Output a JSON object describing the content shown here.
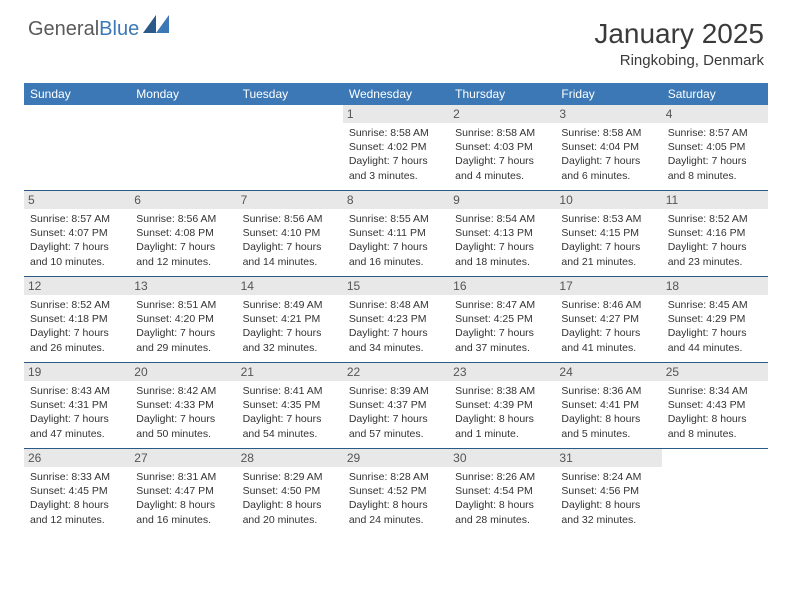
{
  "logo": {
    "text1": "General",
    "text2": "Blue"
  },
  "title": "January 2025",
  "location": "Ringkobing, Denmark",
  "colors": {
    "header_bg": "#3b78b5",
    "header_fg": "#ffffff",
    "daynum_bg": "#e8e8e8",
    "daynum_fg": "#555555",
    "week_divider": "#2b5a8a",
    "text": "#333333",
    "page_bg": "#ffffff",
    "logo_gray": "#5a5a5a",
    "logo_blue": "#3b78b5"
  },
  "day_names": [
    "Sunday",
    "Monday",
    "Tuesday",
    "Wednesday",
    "Thursday",
    "Friday",
    "Saturday"
  ],
  "weeks": [
    [
      null,
      null,
      null,
      {
        "n": "1",
        "sr": "8:58 AM",
        "ss": "4:02 PM",
        "dl": "7 hours and 3 minutes."
      },
      {
        "n": "2",
        "sr": "8:58 AM",
        "ss": "4:03 PM",
        "dl": "7 hours and 4 minutes."
      },
      {
        "n": "3",
        "sr": "8:58 AM",
        "ss": "4:04 PM",
        "dl": "7 hours and 6 minutes."
      },
      {
        "n": "4",
        "sr": "8:57 AM",
        "ss": "4:05 PM",
        "dl": "7 hours and 8 minutes."
      }
    ],
    [
      {
        "n": "5",
        "sr": "8:57 AM",
        "ss": "4:07 PM",
        "dl": "7 hours and 10 minutes."
      },
      {
        "n": "6",
        "sr": "8:56 AM",
        "ss": "4:08 PM",
        "dl": "7 hours and 12 minutes."
      },
      {
        "n": "7",
        "sr": "8:56 AM",
        "ss": "4:10 PM",
        "dl": "7 hours and 14 minutes."
      },
      {
        "n": "8",
        "sr": "8:55 AM",
        "ss": "4:11 PM",
        "dl": "7 hours and 16 minutes."
      },
      {
        "n": "9",
        "sr": "8:54 AM",
        "ss": "4:13 PM",
        "dl": "7 hours and 18 minutes."
      },
      {
        "n": "10",
        "sr": "8:53 AM",
        "ss": "4:15 PM",
        "dl": "7 hours and 21 minutes."
      },
      {
        "n": "11",
        "sr": "8:52 AM",
        "ss": "4:16 PM",
        "dl": "7 hours and 23 minutes."
      }
    ],
    [
      {
        "n": "12",
        "sr": "8:52 AM",
        "ss": "4:18 PM",
        "dl": "7 hours and 26 minutes."
      },
      {
        "n": "13",
        "sr": "8:51 AM",
        "ss": "4:20 PM",
        "dl": "7 hours and 29 minutes."
      },
      {
        "n": "14",
        "sr": "8:49 AM",
        "ss": "4:21 PM",
        "dl": "7 hours and 32 minutes."
      },
      {
        "n": "15",
        "sr": "8:48 AM",
        "ss": "4:23 PM",
        "dl": "7 hours and 34 minutes."
      },
      {
        "n": "16",
        "sr": "8:47 AM",
        "ss": "4:25 PM",
        "dl": "7 hours and 37 minutes."
      },
      {
        "n": "17",
        "sr": "8:46 AM",
        "ss": "4:27 PM",
        "dl": "7 hours and 41 minutes."
      },
      {
        "n": "18",
        "sr": "8:45 AM",
        "ss": "4:29 PM",
        "dl": "7 hours and 44 minutes."
      }
    ],
    [
      {
        "n": "19",
        "sr": "8:43 AM",
        "ss": "4:31 PM",
        "dl": "7 hours and 47 minutes."
      },
      {
        "n": "20",
        "sr": "8:42 AM",
        "ss": "4:33 PM",
        "dl": "7 hours and 50 minutes."
      },
      {
        "n": "21",
        "sr": "8:41 AM",
        "ss": "4:35 PM",
        "dl": "7 hours and 54 minutes."
      },
      {
        "n": "22",
        "sr": "8:39 AM",
        "ss": "4:37 PM",
        "dl": "7 hours and 57 minutes."
      },
      {
        "n": "23",
        "sr": "8:38 AM",
        "ss": "4:39 PM",
        "dl": "8 hours and 1 minute."
      },
      {
        "n": "24",
        "sr": "8:36 AM",
        "ss": "4:41 PM",
        "dl": "8 hours and 5 minutes."
      },
      {
        "n": "25",
        "sr": "8:34 AM",
        "ss": "4:43 PM",
        "dl": "8 hours and 8 minutes."
      }
    ],
    [
      {
        "n": "26",
        "sr": "8:33 AM",
        "ss": "4:45 PM",
        "dl": "8 hours and 12 minutes."
      },
      {
        "n": "27",
        "sr": "8:31 AM",
        "ss": "4:47 PM",
        "dl": "8 hours and 16 minutes."
      },
      {
        "n": "28",
        "sr": "8:29 AM",
        "ss": "4:50 PM",
        "dl": "8 hours and 20 minutes."
      },
      {
        "n": "29",
        "sr": "8:28 AM",
        "ss": "4:52 PM",
        "dl": "8 hours and 24 minutes."
      },
      {
        "n": "30",
        "sr": "8:26 AM",
        "ss": "4:54 PM",
        "dl": "8 hours and 28 minutes."
      },
      {
        "n": "31",
        "sr": "8:24 AM",
        "ss": "4:56 PM",
        "dl": "8 hours and 32 minutes."
      },
      null
    ]
  ],
  "labels": {
    "sunrise": "Sunrise:",
    "sunset": "Sunset:",
    "daylight": "Daylight:"
  }
}
